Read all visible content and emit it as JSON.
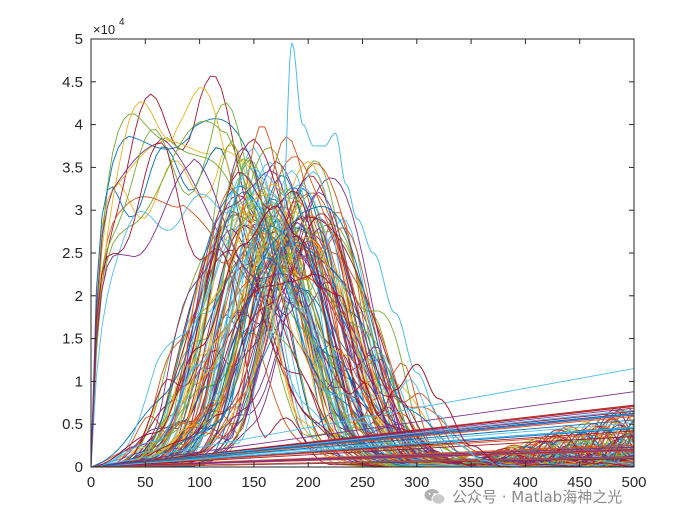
{
  "chart_data": {
    "type": "line",
    "title": "",
    "xlabel": "",
    "ylabel": "",
    "xlim": [
      0,
      500
    ],
    "ylim": [
      0,
      50000
    ],
    "xticks": [
      0,
      50,
      100,
      150,
      200,
      250,
      300,
      350,
      400,
      450,
      500
    ],
    "yticks": [
      0,
      0.5,
      1,
      1.5,
      2,
      2.5,
      3,
      3.5,
      4,
      4.5,
      5
    ],
    "y_exponent_label": "×10",
    "y_exponent_power": "4",
    "grid": false,
    "legend": "none",
    "series_count": 120,
    "colors": [
      "#0072BD",
      "#D95319",
      "#EDB120",
      "#7E2F8E",
      "#77AC30",
      "#4DBEEE",
      "#A2142F"
    ],
    "highlighted_curve": {
      "x": [
        0,
        60,
        100,
        140,
        155,
        165,
        175,
        185,
        195,
        205,
        215,
        225,
        235,
        245,
        260,
        280,
        300,
        320,
        340,
        360,
        380,
        400
      ],
      "y": [
        0,
        3000,
        12000,
        24000,
        26500,
        15000,
        26000,
        49500,
        40000,
        37500,
        37500,
        39000,
        33000,
        29000,
        25000,
        18000,
        11000,
        6000,
        2500,
        800,
        200,
        0
      ]
    },
    "dip_curve": {
      "x": [
        0,
        60,
        100,
        140,
        170,
        190,
        210,
        230,
        250,
        265,
        280,
        300,
        320,
        350,
        380
      ],
      "y": [
        0,
        4000,
        14000,
        26000,
        30500,
        27000,
        21000,
        20000,
        10000,
        6000,
        9000,
        12000,
        8000,
        2500,
        0
      ]
    },
    "linear_lines": [
      {
        "x": [
          0,
          500
        ],
        "y": [
          0,
          11500
        ]
      },
      {
        "x": [
          0,
          500
        ],
        "y": [
          0,
          8800
        ]
      },
      {
        "x": [
          0,
          500
        ],
        "y": [
          0,
          6500
        ]
      },
      {
        "x": [
          0,
          500
        ],
        "y": [
          0,
          4500
        ]
      },
      {
        "x": [
          0,
          500
        ],
        "y": [
          0,
          2500
        ]
      }
    ]
  },
  "watermark": {
    "text": "公众号 · Matlab海神之光",
    "icon": "wechat-icon"
  }
}
